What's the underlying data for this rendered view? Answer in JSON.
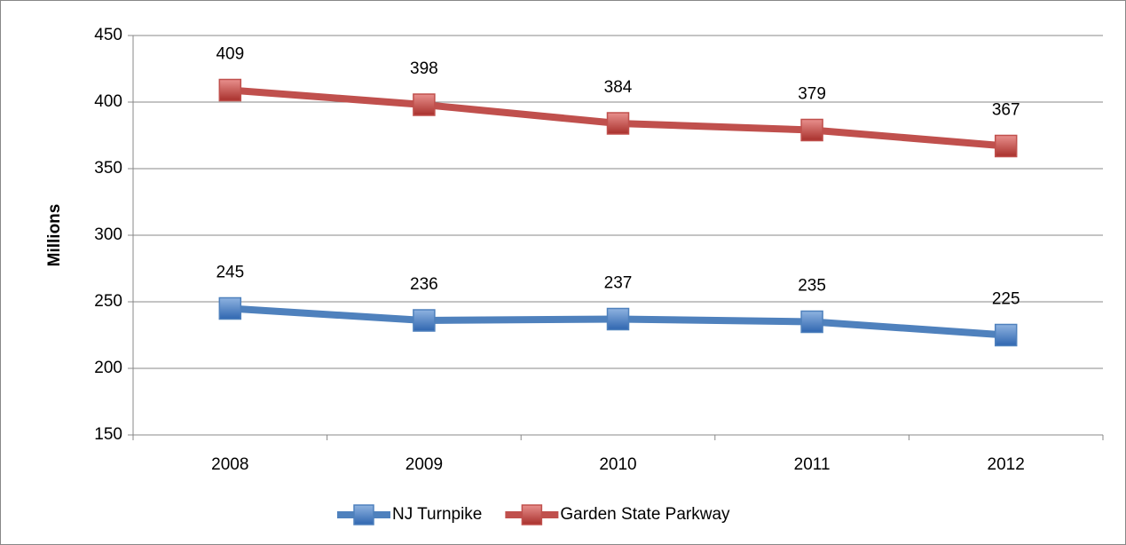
{
  "chart_data": {
    "type": "line",
    "y_label": "Millions",
    "categories": [
      "2008",
      "2009",
      "2010",
      "2011",
      "2012"
    ],
    "series": [
      {
        "name": "NJ Turnpike",
        "color": "#4f81bd",
        "values": [
          245,
          236,
          237,
          235,
          225
        ]
      },
      {
        "name": "Garden State Parkway",
        "color": "#c0504d",
        "values": [
          409,
          398,
          384,
          379,
          367
        ]
      }
    ],
    "ylim": [
      150,
      450
    ],
    "yticks": [
      150,
      200,
      250,
      300,
      350,
      400,
      450
    ],
    "grid": true,
    "legend": "bottom"
  }
}
